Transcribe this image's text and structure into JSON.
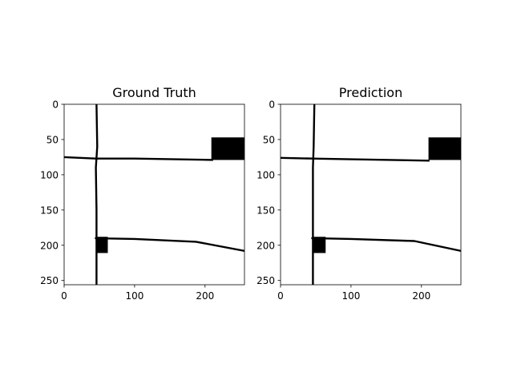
{
  "chart_data": [
    {
      "type": "heatmap",
      "title": "Ground Truth",
      "colormap": [
        "#ffffff",
        "#000000"
      ],
      "xlim": [
        0,
        256
      ],
      "ylim": [
        256,
        0
      ],
      "xticks": [
        0,
        100,
        200
      ],
      "yticks": [
        0,
        50,
        100,
        150,
        200,
        250
      ],
      "segments": [
        {
          "kind": "line",
          "points": [
            [
              46,
              0
            ],
            [
              47,
              60
            ],
            [
              45,
              90
            ],
            [
              46,
              150
            ],
            [
              46,
              256
            ]
          ]
        },
        {
          "kind": "line",
          "points": [
            [
              0,
              75
            ],
            [
              45,
              77
            ],
            [
              100,
              77
            ],
            [
              210,
              79
            ]
          ]
        },
        {
          "kind": "line",
          "points": [
            [
              45,
              190
            ],
            [
              100,
              191
            ],
            [
              187,
              195
            ],
            [
              256,
              208
            ]
          ]
        },
        {
          "kind": "rect",
          "x": [
            209,
            256
          ],
          "y": [
            47,
            79
          ]
        },
        {
          "kind": "rect",
          "x": [
            45,
            62
          ],
          "y": [
            188,
            211
          ]
        }
      ]
    },
    {
      "type": "heatmap",
      "title": "Prediction",
      "colormap": [
        "#ffffff",
        "#000000"
      ],
      "xlim": [
        0,
        256
      ],
      "ylim": [
        256,
        0
      ],
      "xticks": [
        0,
        100,
        200
      ],
      "yticks": [
        0,
        50,
        100,
        150,
        200,
        250
      ],
      "segments": [
        {
          "kind": "line",
          "points": [
            [
              48,
              0
            ],
            [
              47,
              60
            ],
            [
              46,
              90
            ],
            [
              46,
              150
            ],
            [
              46,
              256
            ]
          ]
        },
        {
          "kind": "line",
          "points": [
            [
              0,
              76
            ],
            [
              45,
              77
            ],
            [
              100,
              78
            ],
            [
              210,
              80
            ]
          ]
        },
        {
          "kind": "line",
          "points": [
            [
              45,
              190
            ],
            [
              100,
              191
            ],
            [
              190,
              194
            ],
            [
              256,
              208
            ]
          ]
        },
        {
          "kind": "rect",
          "x": [
            210,
            256
          ],
          "y": [
            47,
            79
          ]
        },
        {
          "kind": "rect",
          "x": [
            46,
            64
          ],
          "y": [
            188,
            211
          ]
        }
      ]
    }
  ]
}
